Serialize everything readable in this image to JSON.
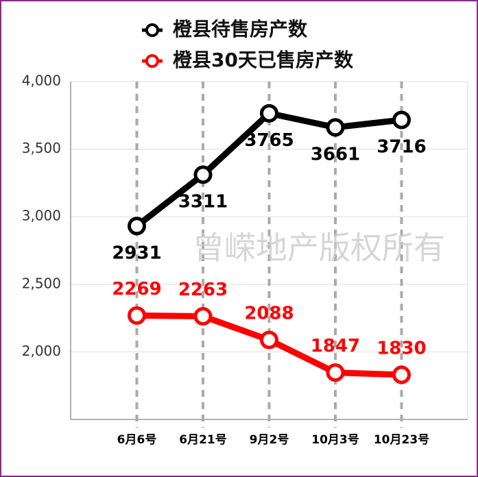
{
  "chart_data": {
    "type": "line",
    "categories": [
      "6月6号",
      "6月21号",
      "9月2号",
      "10月3号",
      "10月23号"
    ],
    "series": [
      {
        "name": "橙县待售房产数",
        "color": "#000000",
        "values": [
          2931,
          3311,
          3765,
          3661,
          3716
        ]
      },
      {
        "name": "橙县30天已售房产数",
        "color": "#ff0000",
        "values": [
          2269,
          2263,
          2088,
          1847,
          1830
        ]
      }
    ],
    "ylim": [
      1500,
      4000
    ],
    "yticks": [
      {
        "value": 2000,
        "label": "2,000"
      },
      {
        "value": 2500,
        "label": "2,500"
      },
      {
        "value": 3000,
        "label": "3,000"
      },
      {
        "value": 3500,
        "label": "3,500"
      },
      {
        "value": 4000,
        "label": "4,000"
      }
    ],
    "grid": true,
    "legend": "top",
    "watermark": "曾嵘地产版权所有"
  }
}
